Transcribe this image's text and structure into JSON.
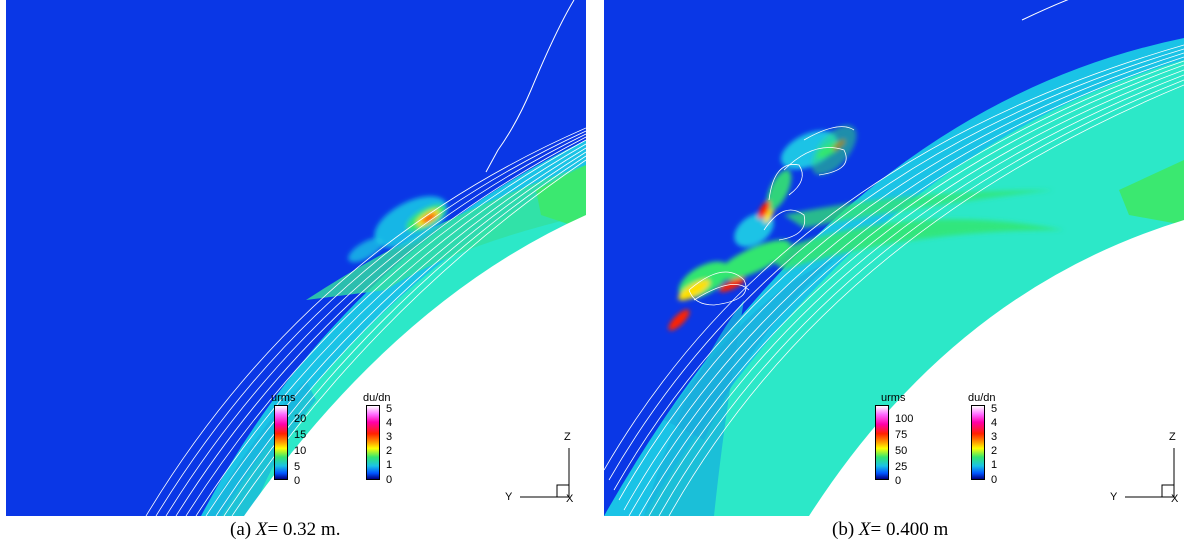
{
  "panels": [
    {
      "caption": {
        "prefix": "(a)",
        "variable": "X",
        "value": "= 0.32 m."
      },
      "legend_urms": {
        "title": "urms",
        "ticks": [
          "20",
          "15",
          "10",
          "5",
          "0"
        ]
      },
      "legend_dudn": {
        "title": "du/dn",
        "ticks": [
          "5",
          "4",
          "3",
          "2",
          "1",
          "0"
        ]
      },
      "axes": {
        "vertical": "Z",
        "horizontal": "Y",
        "normal": "X"
      }
    },
    {
      "caption": {
        "prefix": "(b)",
        "variable": "X",
        "value": "= 0.400 m"
      },
      "legend_urms": {
        "title": "urms",
        "ticks": [
          "100",
          "75",
          "50",
          "25",
          "0"
        ]
      },
      "legend_dudn": {
        "title": "du/dn",
        "ticks": [
          "5",
          "4",
          "3",
          "2",
          "1",
          "0"
        ]
      },
      "axes": {
        "vertical": "Z",
        "horizontal": "Y",
        "normal": "X"
      }
    }
  ],
  "colors": {
    "freestream": "#0a37e6",
    "shear_layer": "#1ac3e6",
    "boundary_band": "#2ce8c8",
    "green_zone": "#33e670",
    "hot_spot": "#ff2200",
    "body": "#ffffff"
  }
}
